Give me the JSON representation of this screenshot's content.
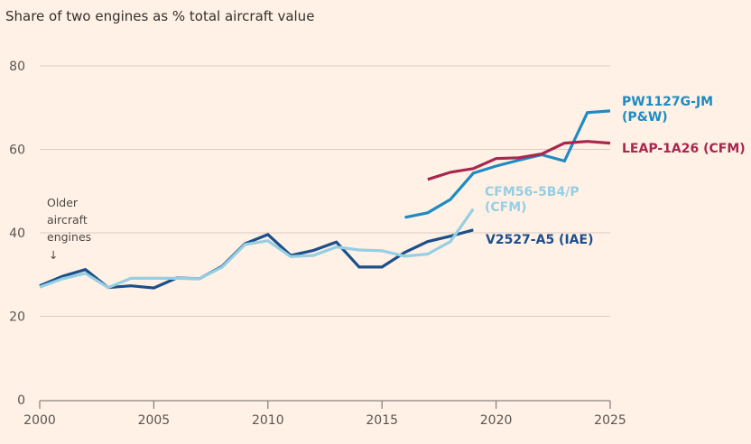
{
  "chart_data": {
    "type": "line",
    "title": "Share of two engines as % total aircraft value",
    "xlabel": "",
    "ylabel": "",
    "xlim": [
      2000,
      2025
    ],
    "ylim": [
      0,
      80
    ],
    "x_ticks": [
      "2000",
      "2005",
      "2010",
      "2015",
      "2020",
      "2025"
    ],
    "y_ticks": [
      "0",
      "20",
      "40",
      "60",
      "80"
    ],
    "grid": true,
    "legend": "direct-labels-right",
    "annotations": [
      {
        "text": [
          "Older",
          "aircraft",
          "engines"
        ],
        "arrow": "↓",
        "x": 2000.3,
        "y": 36
      }
    ],
    "series": [
      {
        "name": "V2527-A5 (IAE)",
        "label_lines": [
          "V2527-A5 (IAE)"
        ],
        "color": "#1c4f8a",
        "x": [
          2000,
          2001,
          2002,
          2003,
          2004,
          2005,
          2006,
          2007,
          2008,
          2009,
          2010,
          2011,
          2012,
          2013,
          2014,
          2015,
          2016,
          2017,
          2018,
          2019
        ],
        "values": [
          27.3,
          29.6,
          31.2,
          26.9,
          27.3,
          26.8,
          29.2,
          29.0,
          32.0,
          37.4,
          39.6,
          34.6,
          35.8,
          37.8,
          31.8,
          31.8,
          35.3,
          37.9,
          39.2,
          40.7
        ]
      },
      {
        "name": "CFM56-5B4/P (CFM)",
        "label_lines": [
          "CFM56-5B4/P",
          "(CFM)"
        ],
        "color": "#96cee4",
        "x": [
          2000,
          2001,
          2002,
          2003,
          2004,
          2005,
          2006,
          2007,
          2008,
          2009,
          2010,
          2011,
          2012,
          2013,
          2014,
          2015,
          2016,
          2017,
          2018,
          2019
        ],
        "values": [
          27.0,
          29.0,
          30.3,
          26.9,
          29.1,
          29.1,
          29.1,
          29.0,
          31.8,
          37.2,
          38.1,
          34.3,
          34.6,
          36.6,
          35.9,
          35.7,
          34.4,
          34.9,
          37.9,
          45.7
        ]
      },
      {
        "name": "PW1127G-JM (P&W)",
        "label_lines": [
          "PW1127G-JM",
          "(P&W)"
        ],
        "color": "#1e8bc3",
        "x": [
          2016,
          2017,
          2018,
          2019,
          2020,
          2021,
          2022,
          2023,
          2024,
          2025
        ],
        "values": [
          43.7,
          44.8,
          48.0,
          54.3,
          56.0,
          57.4,
          58.7,
          57.2,
          68.8,
          69.2
        ]
      },
      {
        "name": "LEAP-1A26 (CFM)",
        "label_lines": [
          "LEAP-1A26 (CFM)"
        ],
        "color": "#a8264f",
        "x": [
          2017,
          2018,
          2019,
          2020,
          2021,
          2022,
          2023,
          2024,
          2025
        ],
        "values": [
          52.8,
          54.5,
          55.4,
          57.8,
          58.0,
          58.9,
          61.5,
          61.9,
          61.5
        ]
      }
    ]
  }
}
